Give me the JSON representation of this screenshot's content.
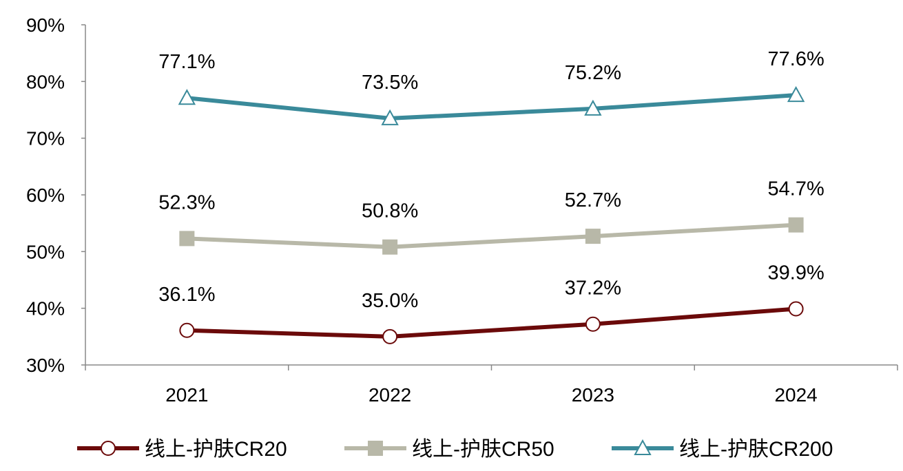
{
  "chart_data": {
    "type": "line",
    "title": "",
    "xlabel": "",
    "ylabel": "",
    "categories": [
      "2021",
      "2022",
      "2023",
      "2024"
    ],
    "ylim": [
      30,
      90
    ],
    "yticks": [
      "30%",
      "40%",
      "50%",
      "60%",
      "70%",
      "80%",
      "90%"
    ],
    "grid": false,
    "legend_position": "bottom",
    "series": [
      {
        "name": "线上-护肤CR20",
        "values": [
          36.1,
          35.0,
          37.2,
          39.9
        ],
        "labels": [
          "36.1%",
          "35.0%",
          "37.2%",
          "39.9%"
        ],
        "color": "#6B0A0A",
        "marker": "circle"
      },
      {
        "name": "线上-护肤CR50",
        "values": [
          52.3,
          50.8,
          52.7,
          54.7
        ],
        "labels": [
          "52.3%",
          "50.8%",
          "52.7%",
          "54.7%"
        ],
        "color": "#B8B8A8",
        "marker": "square"
      },
      {
        "name": "线上-护肤CR200",
        "values": [
          77.1,
          73.5,
          75.2,
          77.6
        ],
        "labels": [
          "77.1%",
          "73.5%",
          "75.2%",
          "77.6%"
        ],
        "color": "#3A8A9A",
        "marker": "triangle"
      }
    ]
  }
}
